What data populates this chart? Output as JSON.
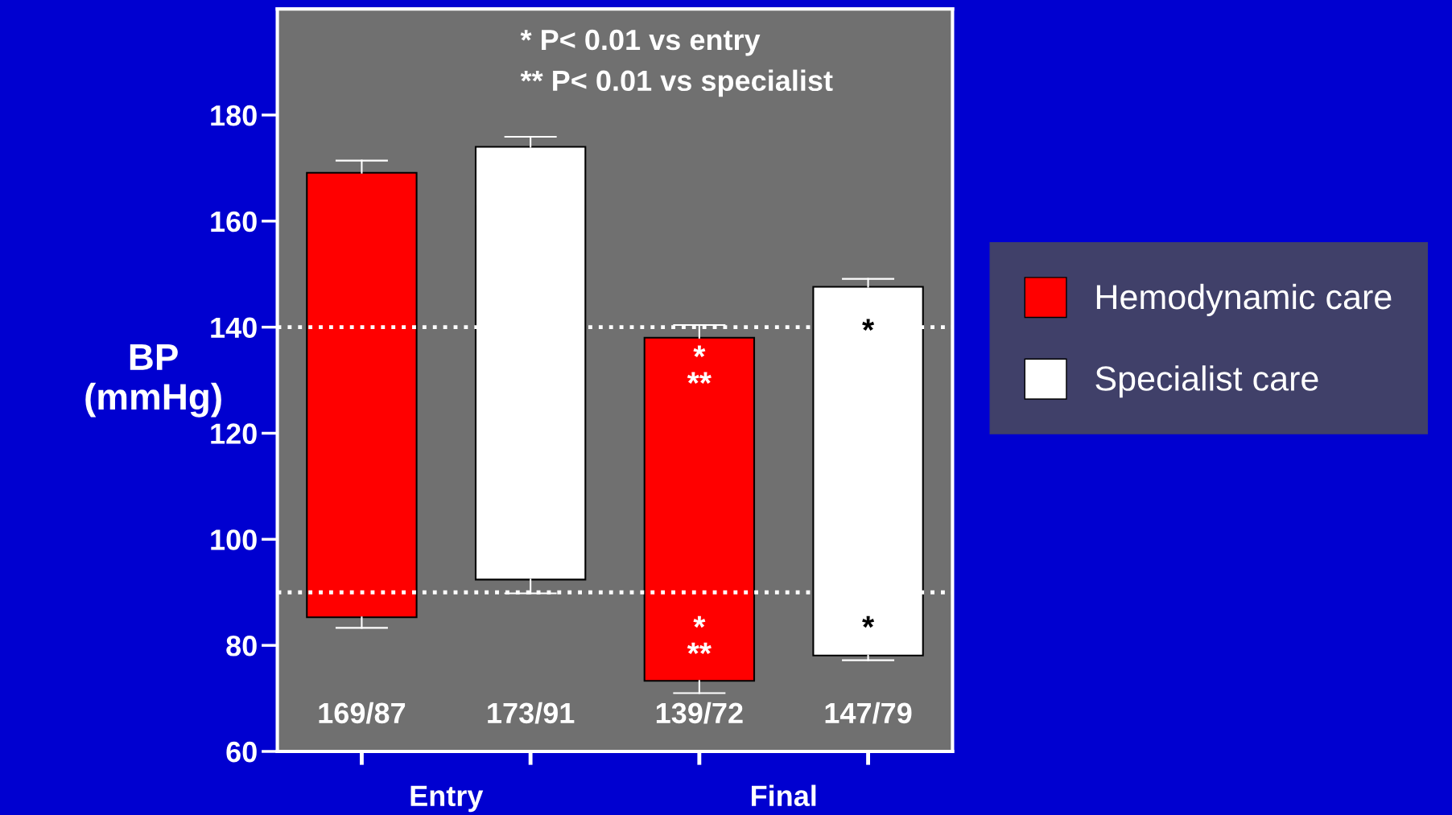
{
  "chart_data": {
    "type": "box",
    "ylabel": "BP\n(mmHg)",
    "categories": [
      null,
      null,
      null,
      null
    ],
    "series": [
      {
        "name": "Hemodynamic care",
        "color": "#ff0000",
        "boxes": [
          {
            "low": 83.3,
            "q1": 85.3,
            "q3": 169.1,
            "high": 171.4
          },
          null,
          {
            "low": 71.0,
            "q1": 73.3,
            "q3": 138.0,
            "high": 140.4
          },
          null
        ]
      },
      {
        "name": "Specialist care",
        "color": "#ffffff",
        "boxes": [
          null,
          {
            "low": 89.8,
            "q1": 92.4,
            "q3": 174.0,
            "high": 175.9
          },
          null,
          {
            "low": 77.2,
            "q1": 78.1,
            "q3": 147.6,
            "high": 149.1
          }
        ]
      }
    ],
    "ylim": [
      60,
      200
    ],
    "yticks": [
      60,
      80,
      100,
      120,
      140,
      160,
      180
    ],
    "ref_lines": [
      {
        "axis": "y",
        "value": 140,
        "color": "#ffffff",
        "line_style": "dotted"
      },
      {
        "axis": "y",
        "value": 90,
        "color": "#ffffff",
        "line_style": "dotted"
      }
    ],
    "annotations": [
      "* P< 0.01 vs entry",
      "** P< 0.01 vs specialist",
      "169/87",
      "173/91",
      "139/72",
      "147/79",
      "Entry",
      "Final",
      "*",
      "**",
      "*",
      "**",
      "*",
      "*"
    ],
    "legend": "right",
    "grid": false
  }
}
